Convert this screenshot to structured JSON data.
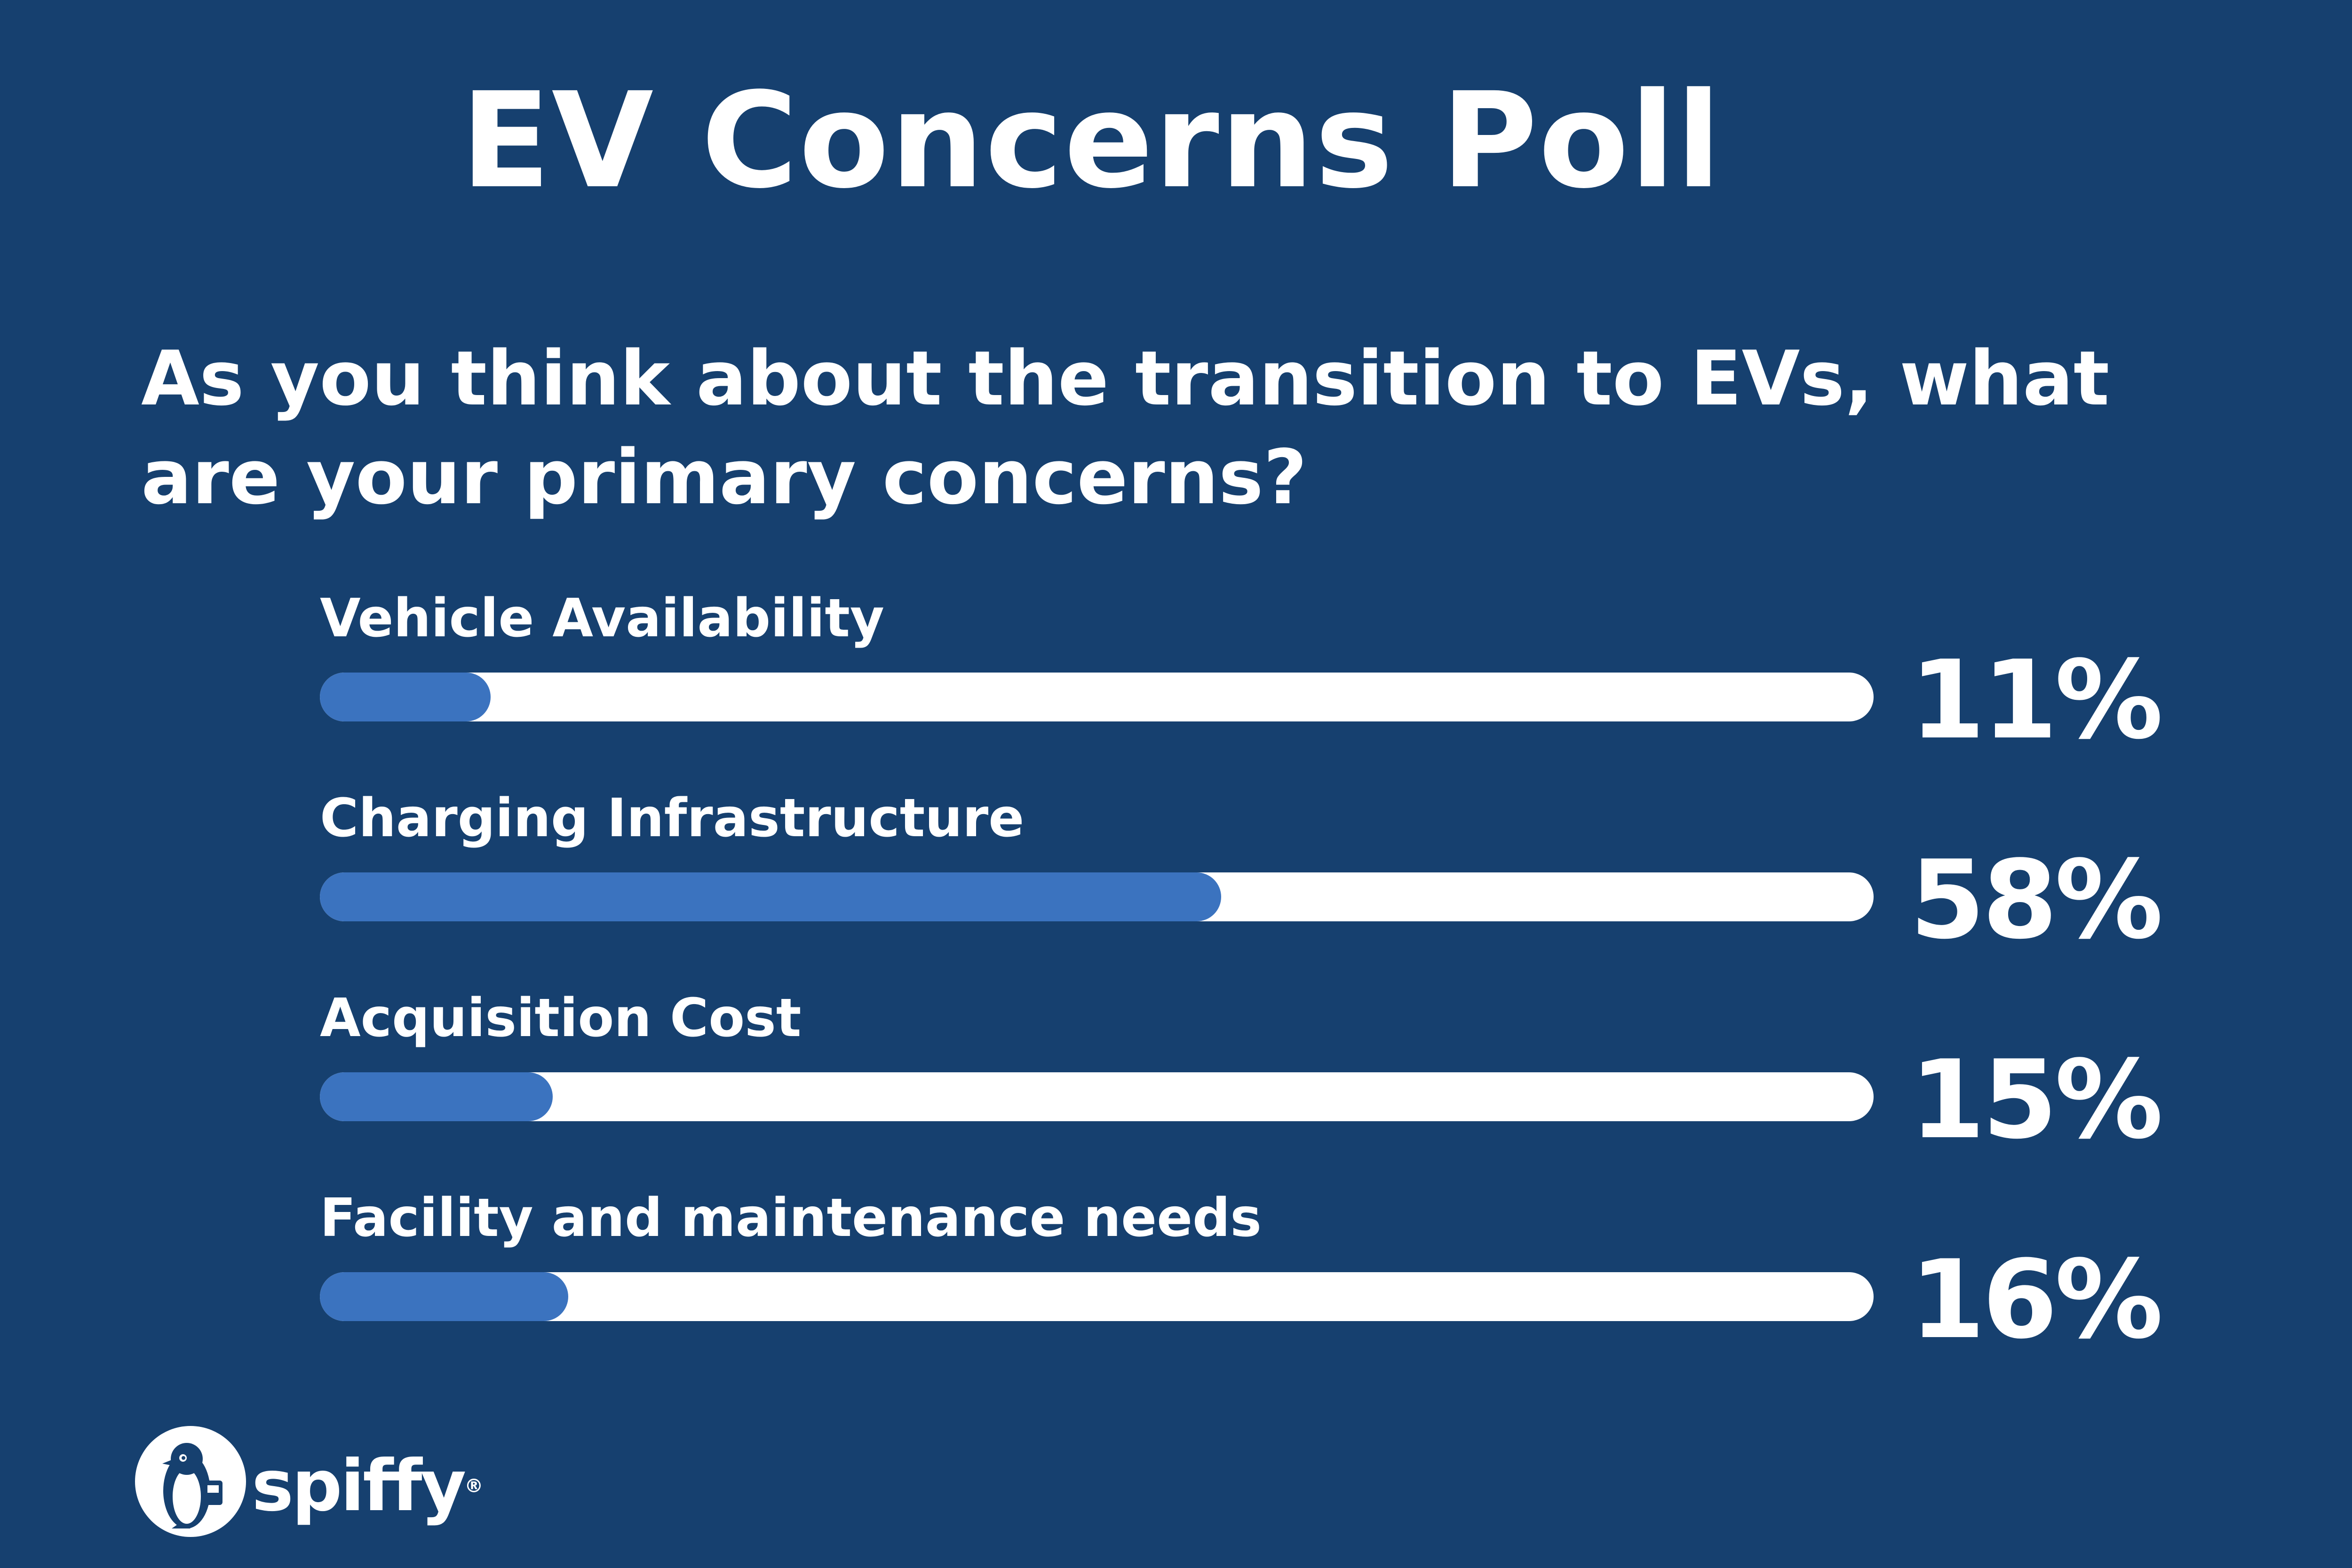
{
  "colors": {
    "background": "#16406f",
    "bar_fill": "#3b73bf",
    "bar_track": "#ffffff",
    "text": "#ffffff"
  },
  "brand": {
    "name": "spiffy",
    "registered": "®",
    "logo_icon": "penguin-icon"
  },
  "chart_data": {
    "type": "bar",
    "orientation": "horizontal",
    "title": "EV Concerns Poll",
    "subtitle": "As you think about the transition to EVs, what are your primary concerns?",
    "categories": [
      "Vehicle Availability",
      "Charging Infrastructure",
      "Acquisition Cost",
      "Facility and maintenance needs"
    ],
    "values": [
      11,
      58,
      15,
      16
    ],
    "value_labels": [
      "11%",
      "58%",
      "15%",
      "16%"
    ],
    "unit": "%",
    "xlim": [
      0,
      100
    ],
    "grid": false
  }
}
